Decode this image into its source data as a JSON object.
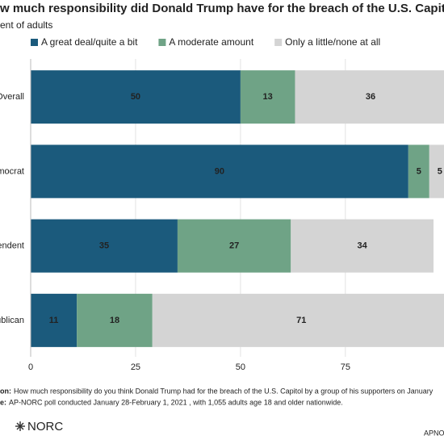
{
  "chart_data": {
    "type": "stacked-bar-horizontal",
    "title": "w much responsibility did Donald Trump have for the breach of the U.S. Capito",
    "subtitle": "ent of adults",
    "categories": [
      "Overall",
      "mocrat",
      "endent",
      "ublican"
    ],
    "series": [
      {
        "name": "A great deal/quite a bit",
        "color": "#1b5a7c",
        "values": [
          50,
          90,
          35,
          11
        ]
      },
      {
        "name": "A moderate amount",
        "color": "#6fa386",
        "values": [
          13,
          5,
          27,
          18
        ]
      },
      {
        "name": "Only a little/none at all",
        "color": "#d4d4d4",
        "values": [
          36,
          5,
          34,
          71
        ]
      }
    ],
    "xlim": [
      0,
      98.5
    ],
    "xticks": [
      0,
      25,
      50,
      75
    ],
    "grid": true,
    "notes": [
      {
        "label": "on:",
        "text": "How much responsibility do you think Donald Trump had for the breach of the U.S. Capitol by a group of his supporters on January"
      },
      {
        "label": "e:",
        "text": "AP-NORC poll conducted January 28-February 1, 2021 , with 1,055 adults age 18 and older nationwide."
      }
    ],
    "logo": "NORC",
    "footer": "APNO"
  }
}
